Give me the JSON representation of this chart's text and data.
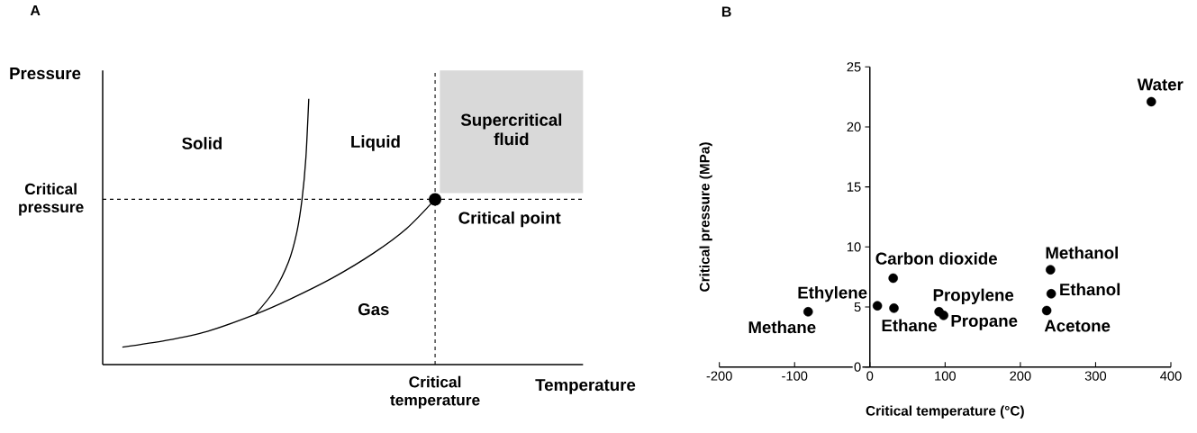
{
  "chart_data": [
    {
      "type": "other",
      "title": "A",
      "xlabel": "Temperature",
      "ylabel": "Pressure",
      "annotations": [
        "Solid",
        "Liquid",
        "Supercritical fluid",
        "Critical pressure",
        "Critical point",
        "Gas",
        "Critical temperature"
      ]
    },
    {
      "type": "scatter",
      "title": "B",
      "xlabel": "Critical temperature (°C)",
      "ylabel": "Critical pressure (MPa)",
      "marker": "circle",
      "xlim": [
        -200,
        400
      ],
      "xticks": [
        -200,
        -100,
        0,
        100,
        200,
        300,
        400
      ],
      "ylim": [
        0,
        25
      ],
      "yticks": [
        0,
        5,
        10,
        15,
        20,
        25
      ],
      "series": [
        {
          "color": "#000000",
          "x": [
            374,
            240,
            241,
            235,
            92,
            98,
            31,
            32,
            10,
            -82
          ],
          "values": [
            22.1,
            8.1,
            6.1,
            4.7,
            4.6,
            4.3,
            7.4,
            4.9,
            5.1,
            4.6
          ]
        }
      ],
      "annotations": [
        {
          "text": "Water",
          "x": 374,
          "y": 22.1
        },
        {
          "text": "Methanol",
          "x": 240,
          "y": 8.1
        },
        {
          "text": "Ethanol",
          "x": 241,
          "y": 6.1
        },
        {
          "text": "Acetone",
          "x": 235,
          "y": 4.7
        },
        {
          "text": "Propylene",
          "x": 92,
          "y": 4.6
        },
        {
          "text": "Propane",
          "x": 98,
          "y": 4.3
        },
        {
          "text": "Carbon dioxide",
          "x": 31,
          "y": 7.4
        },
        {
          "text": "Ethane",
          "x": 32,
          "y": 4.9
        },
        {
          "text": "Ethylene",
          "x": 10,
          "y": 5.1
        },
        {
          "text": "Methane",
          "x": -82,
          "y": 4.6
        }
      ]
    }
  ]
}
